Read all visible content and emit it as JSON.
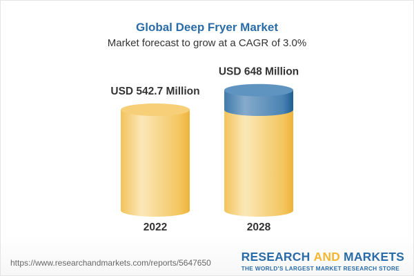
{
  "chart_data": {
    "type": "bar",
    "style": "3d-cylinder",
    "title": "Global Deep Fryer Market",
    "subtitle": "Market forecast to grow at a CAGR of 3.0%",
    "categories": [
      "2022",
      "2028"
    ],
    "values": [
      542.7,
      648
    ],
    "data_labels": [
      "USD 542.7 Million",
      "USD 648 Million"
    ],
    "unit": "USD Million",
    "colors": {
      "base": "#f4c55d",
      "growth": "#3f7bad",
      "title": "#2a6ca8"
    }
  },
  "footer": {
    "url": "https://www.researchandmarkets.com/reports/5647650",
    "logo_part1": "RESEARCH ",
    "logo_part2": "AND",
    "logo_part3": " MARKETS",
    "tagline": "THE WORLD'S LARGEST MARKET RESEARCH STORE"
  }
}
